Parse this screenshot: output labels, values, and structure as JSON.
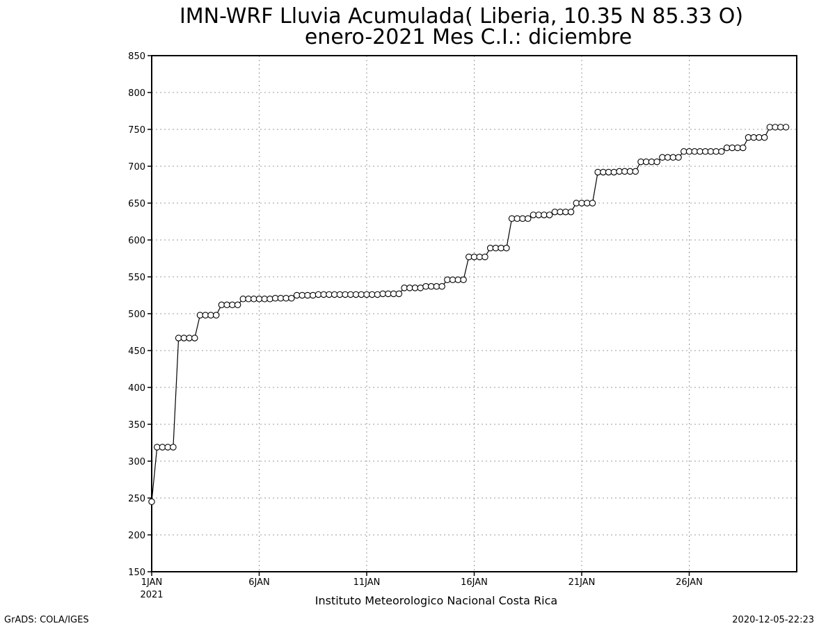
{
  "chart_data": {
    "type": "line",
    "title": "IMN-WRF  Lluvia Acumulada( Liberia, 10.35  N 85.33  O)",
    "subtitle": "enero-2021 Mes C.I.: diciembre",
    "xlabel": "Instituto Meteorologico Nacional Costa Rica",
    "ylabel": "",
    "footer_left": "GrADS: COLA/IGES",
    "footer_right": "2020-12-05-22:23",
    "x_tick_labels": [
      "1JAN",
      "6JAN",
      "11JAN",
      "16JAN",
      "21JAN",
      "26JAN"
    ],
    "x_tick_year": "2021",
    "x_ticks_day": [
      1,
      6,
      11,
      16,
      21,
      26
    ],
    "xlim_day": [
      1,
      31
    ],
    "ylim": [
      150,
      850
    ],
    "y_ticks": [
      150,
      200,
      250,
      300,
      350,
      400,
      450,
      500,
      550,
      600,
      650,
      700,
      750,
      800,
      850
    ],
    "grid": true,
    "line_color": "#000000",
    "marker": "open-circle",
    "series": [
      {
        "step_days": 0.25,
        "start_day": 1,
        "values": [
          245,
          319,
          319,
          319,
          319,
          467,
          467,
          467,
          467,
          498,
          498,
          498,
          498,
          512,
          512,
          512,
          512,
          520,
          520,
          520,
          520,
          520,
          520,
          521,
          521,
          521,
          521,
          525,
          525,
          525,
          525,
          526,
          526,
          526,
          526,
          526,
          526,
          526,
          526,
          526,
          526,
          526,
          526,
          527,
          527,
          527,
          527,
          535,
          535,
          535,
          535,
          537,
          537,
          537,
          537,
          546,
          546,
          546,
          546,
          577,
          577,
          577,
          577,
          589,
          589,
          589,
          589,
          629,
          629,
          629,
          629,
          634,
          634,
          634,
          634,
          638,
          638,
          638,
          638,
          650,
          650,
          650,
          650,
          692,
          692,
          692,
          692,
          693,
          693,
          693,
          693,
          706,
          706,
          706,
          706,
          712,
          712,
          712,
          712,
          720,
          720,
          720,
          720,
          720,
          720,
          720,
          720,
          725,
          725,
          725,
          725,
          739,
          739,
          739,
          739,
          753,
          753,
          753,
          753
        ]
      }
    ]
  }
}
